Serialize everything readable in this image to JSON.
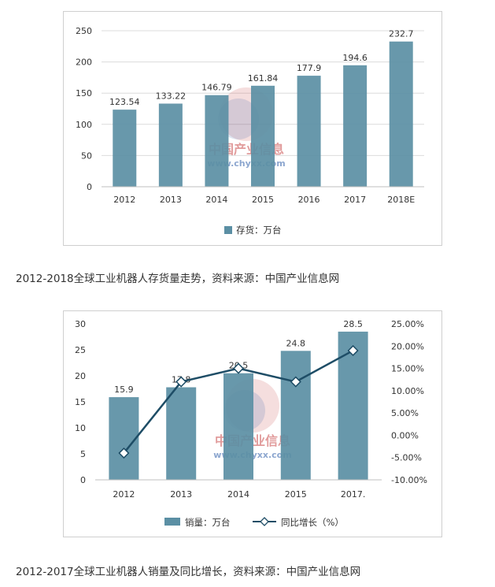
{
  "colors": {
    "bar": "#5b8fa4",
    "line": "#1e4d66",
    "axis_text": "#333333",
    "grid": "#dcdcdc"
  },
  "captions": {
    "chart1": "2012-2018全球工业机器人存货量走势，资料来源：中国产业信息网",
    "chart2": "2012-2017全球工业机器人销量及同比增长，资料来源：中国产业信息网"
  },
  "watermark": {
    "name": "中国产业信息",
    "url": "www.chyxx.com"
  },
  "chart_data": [
    {
      "type": "bar",
      "title": "",
      "categories": [
        "2012",
        "2013",
        "2014",
        "2015",
        "2016",
        "2017",
        "2018E"
      ],
      "series": [
        {
          "name": "存货：万台",
          "values": [
            123.54,
            133.22,
            146.79,
            161.84,
            177.9,
            194.6,
            232.7
          ]
        }
      ],
      "data_labels": [
        "123.54",
        "133.22",
        "146.79",
        "161.84",
        "177.9",
        "194.6",
        "232.7"
      ],
      "ylim": [
        0,
        250
      ],
      "yticks": [
        "0",
        "50",
        "100",
        "150",
        "200",
        "250"
      ],
      "grid": true,
      "legend": "bottom"
    },
    {
      "type": "bar",
      "title": "",
      "categories": [
        "2012",
        "2013",
        "2014",
        "2015",
        "2017."
      ],
      "series": [
        {
          "name": "销量：万台",
          "type": "bar",
          "axis": "left",
          "values": [
            15.9,
            17.8,
            20.5,
            24.8,
            28.5
          ]
        },
        {
          "name": "同比增长（%）",
          "type": "line",
          "axis": "right",
          "values": [
            -4.0,
            12.0,
            15.0,
            12.0,
            19.0
          ]
        }
      ],
      "data_labels": [
        "15.9",
        "17.8",
        "20.5",
        "24.8",
        "28.5"
      ],
      "ylim": [
        0,
        30
      ],
      "yticks": [
        "0",
        "5",
        "10",
        "15",
        "20",
        "25",
        "30"
      ],
      "y2lim": [
        -10,
        25
      ],
      "y2ticks": [
        "-10.00%",
        "-5.00%",
        "0.00%",
        "5.00%",
        "10.00%",
        "15.00%",
        "20.00%",
        "25.00%"
      ],
      "grid": false,
      "legend": "bottom"
    }
  ]
}
